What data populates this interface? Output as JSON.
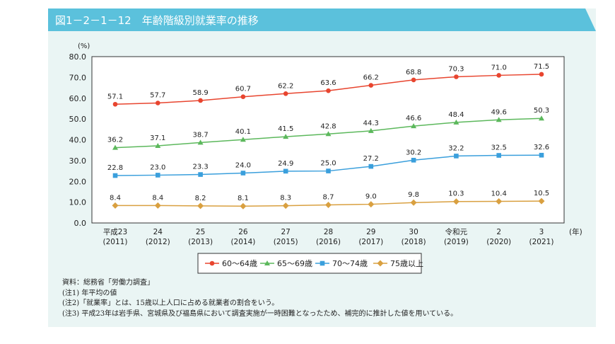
{
  "title": "図1－2－1－12　年齢階級別就業率の推移",
  "chart_data": {
    "type": "line",
    "ylabel": "(%)",
    "xunit": "(年)",
    "ylim": [
      0,
      80
    ],
    "yticks": [
      "0.0",
      "10.0",
      "20.0",
      "30.0",
      "40.0",
      "50.0",
      "60.0",
      "70.0",
      "80.0"
    ],
    "categories": [
      [
        "平成23",
        "(2011)"
      ],
      [
        "24",
        "(2012)"
      ],
      [
        "25",
        "(2013)"
      ],
      [
        "26",
        "(2014)"
      ],
      [
        "27",
        "(2015)"
      ],
      [
        "28",
        "(2016)"
      ],
      [
        "29",
        "(2017)"
      ],
      [
        "30",
        "(2018)"
      ],
      [
        "令和元",
        "(2019)"
      ],
      [
        "2",
        "(2020)"
      ],
      [
        "3",
        "(2021)"
      ]
    ],
    "grid": false,
    "legend": "bottom",
    "series": [
      {
        "name": "60～64歳",
        "color": "#e8452f",
        "marker": "circle",
        "values": [
          57.1,
          57.7,
          58.9,
          60.7,
          62.2,
          63.6,
          66.2,
          68.8,
          70.3,
          71.0,
          71.5
        ]
      },
      {
        "name": "65～69歳",
        "color": "#5cb85c",
        "marker": "triangle",
        "values": [
          36.2,
          37.1,
          38.7,
          40.1,
          41.5,
          42.8,
          44.3,
          46.6,
          48.4,
          49.6,
          50.3
        ]
      },
      {
        "name": "70～74歳",
        "color": "#3a9fdc",
        "marker": "square",
        "values": [
          22.8,
          23.0,
          23.3,
          24.0,
          24.9,
          25.0,
          27.2,
          30.2,
          32.2,
          32.5,
          32.6
        ]
      },
      {
        "name": "75歳以上",
        "color": "#d9a040",
        "marker": "diamond",
        "values": [
          8.4,
          8.4,
          8.2,
          8.1,
          8.3,
          8.7,
          9.0,
          9.8,
          10.3,
          10.4,
          10.5
        ]
      }
    ]
  },
  "notes": [
    "資料：総務省「労働力調査」",
    "(注1) 年平均の値",
    "(注2)「就業率」とは、15歳以上人口に占める就業者の割合をいう。",
    "(注3) 平成23年は岩手県、宮城県及び福島県において調査実施が一時困難となったため、補完的に推計した値を用いている。"
  ]
}
